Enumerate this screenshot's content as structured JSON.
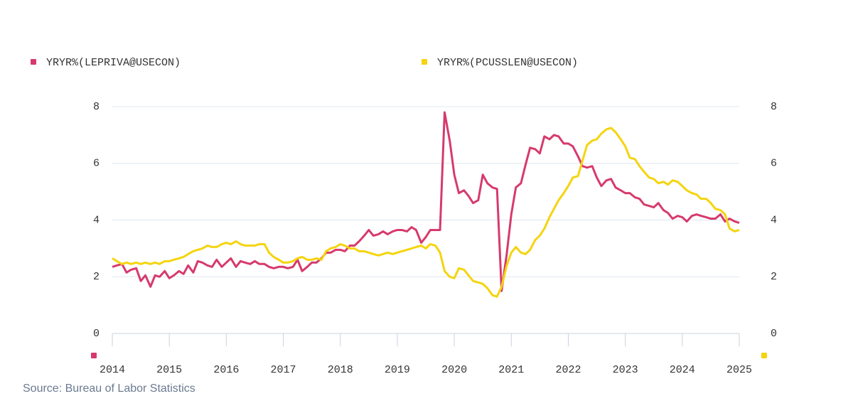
{
  "chart_data": {
    "type": "line",
    "source": "Source: Bureau of Labor Statistics",
    "x": [
      2014,
      2014.08,
      2014.17,
      2014.25,
      2014.33,
      2014.42,
      2014.5,
      2014.58,
      2014.67,
      2014.75,
      2014.83,
      2014.92,
      2015,
      2015.08,
      2015.17,
      2015.25,
      2015.33,
      2015.42,
      2015.5,
      2015.58,
      2015.67,
      2015.75,
      2015.83,
      2015.92,
      2016,
      2016.08,
      2016.17,
      2016.25,
      2016.33,
      2016.42,
      2016.5,
      2016.58,
      2016.67,
      2016.75,
      2016.83,
      2016.92,
      2017,
      2017.08,
      2017.17,
      2017.25,
      2017.33,
      2017.42,
      2017.5,
      2017.58,
      2017.67,
      2017.75,
      2017.83,
      2017.92,
      2018,
      2018.08,
      2018.17,
      2018.25,
      2018.33,
      2018.42,
      2018.5,
      2018.58,
      2018.67,
      2018.75,
      2018.83,
      2018.92,
      2019,
      2019.08,
      2019.17,
      2019.25,
      2019.33,
      2019.42,
      2019.5,
      2019.58,
      2019.67,
      2019.75,
      2019.83,
      2019.92,
      2020,
      2020.08,
      2020.17,
      2020.25,
      2020.33,
      2020.42,
      2020.5,
      2020.58,
      2020.67,
      2020.75,
      2020.83,
      2020.92,
      2021,
      2021.08,
      2021.17,
      2021.25,
      2021.33,
      2021.42,
      2021.5,
      2021.58,
      2021.67,
      2021.75,
      2021.83,
      2021.92,
      2022,
      2022.08,
      2022.17,
      2022.25,
      2022.33,
      2022.42,
      2022.5,
      2022.58,
      2022.67,
      2022.75,
      2022.83,
      2022.92,
      2023,
      2023.08,
      2023.17,
      2023.25,
      2023.33,
      2023.42,
      2023.5,
      2023.58,
      2023.67,
      2023.75,
      2023.83,
      2023.92,
      2024,
      2024.08,
      2024.17,
      2024.25,
      2024.33,
      2024.42,
      2024.5,
      2024.58,
      2024.67,
      2024.75,
      2024.83,
      2024.92,
      2025
    ],
    "series": [
      {
        "name": "YRYR%(LEPRIVA@USECON)",
        "color": "#d63a6c",
        "values": [
          2.35,
          2.4,
          2.45,
          2.15,
          2.25,
          2.3,
          1.85,
          2.05,
          1.65,
          2.05,
          2.0,
          2.2,
          1.95,
          2.05,
          2.2,
          2.1,
          2.4,
          2.15,
          2.55,
          2.5,
          2.4,
          2.35,
          2.6,
          2.35,
          2.5,
          2.65,
          2.35,
          2.55,
          2.5,
          2.45,
          2.55,
          2.45,
          2.45,
          2.35,
          2.3,
          2.35,
          2.35,
          2.3,
          2.35,
          2.6,
          2.2,
          2.35,
          2.5,
          2.5,
          2.65,
          2.85,
          2.85,
          2.95,
          2.95,
          2.9,
          3.1,
          3.1,
          3.25,
          3.45,
          3.65,
          3.45,
          3.5,
          3.6,
          3.5,
          3.6,
          3.65,
          3.65,
          3.6,
          3.75,
          3.65,
          3.2,
          3.4,
          3.65,
          3.65,
          3.65,
          7.8,
          6.8,
          5.6,
          4.95,
          5.05,
          4.85,
          4.6,
          4.7,
          5.6,
          5.3,
          5.15,
          5.1,
          1.5,
          2.8,
          4.2,
          5.15,
          5.3,
          5.95,
          6.55,
          6.5,
          6.35,
          6.95,
          6.85,
          7.0,
          6.95,
          6.7,
          6.7,
          6.6,
          6.25,
          5.9,
          5.85,
          5.9,
          5.5,
          5.2,
          5.4,
          5.45,
          5.15,
          5.05,
          4.95,
          4.95,
          4.8,
          4.75,
          4.55,
          4.5,
          4.45,
          4.6,
          4.35,
          4.25,
          4.05,
          4.15,
          4.1,
          3.95,
          4.15,
          4.2,
          4.15,
          4.1,
          4.05,
          4.05,
          4.2,
          3.95,
          4.05,
          3.95,
          3.9
        ]
      },
      {
        "name": "YRYR%(PCUSSLEN@USECON)",
        "color": "#f5d40f",
        "axis": "y2",
        "values": [
          2.65,
          2.55,
          2.45,
          2.5,
          2.45,
          2.5,
          2.45,
          2.5,
          2.45,
          2.5,
          2.45,
          2.55,
          2.55,
          2.6,
          2.65,
          2.7,
          2.8,
          2.9,
          2.95,
          3.0,
          3.1,
          3.05,
          3.05,
          3.15,
          3.2,
          3.15,
          3.25,
          3.15,
          3.1,
          3.1,
          3.1,
          3.15,
          3.15,
          2.85,
          2.7,
          2.6,
          2.5,
          2.5,
          2.55,
          2.65,
          2.7,
          2.6,
          2.6,
          2.65,
          2.6,
          2.9,
          3.0,
          3.05,
          3.15,
          3.1,
          3.0,
          3.0,
          2.9,
          2.9,
          2.85,
          2.8,
          2.75,
          2.8,
          2.85,
          2.8,
          2.85,
          2.9,
          2.95,
          3.0,
          3.05,
          3.1,
          3.0,
          3.15,
          3.1,
          2.85,
          2.2,
          2.0,
          1.95,
          2.3,
          2.25,
          2.05,
          1.85,
          1.8,
          1.75,
          1.6,
          1.35,
          1.3,
          1.65,
          2.4,
          2.85,
          3.05,
          2.85,
          2.8,
          2.95,
          3.3,
          3.45,
          3.7,
          4.1,
          4.4,
          4.7,
          4.95,
          5.2,
          5.5,
          5.55,
          6.1,
          6.65,
          6.8,
          6.85,
          7.05,
          7.2,
          7.25,
          7.1,
          6.85,
          6.6,
          6.2,
          6.15,
          5.9,
          5.7,
          5.5,
          5.45,
          5.3,
          5.35,
          5.25,
          5.4,
          5.35,
          5.2,
          5.05,
          4.95,
          4.9,
          4.75,
          4.75,
          4.6,
          4.4,
          4.35,
          4.2,
          3.7,
          3.6,
          3.65
        ]
      }
    ],
    "xlim": [
      2014,
      2025
    ],
    "xticks": [
      2014,
      2015,
      2016,
      2017,
      2018,
      2019,
      2020,
      2021,
      2022,
      2023,
      2024,
      2025
    ],
    "ylim": [
      0,
      8
    ],
    "yticks": [
      0,
      2,
      4,
      6,
      8
    ],
    "y2lim": [
      0,
      8
    ],
    "y2ticks": [
      0,
      2,
      4,
      6,
      8
    ],
    "grid": true,
    "legend": "top"
  }
}
